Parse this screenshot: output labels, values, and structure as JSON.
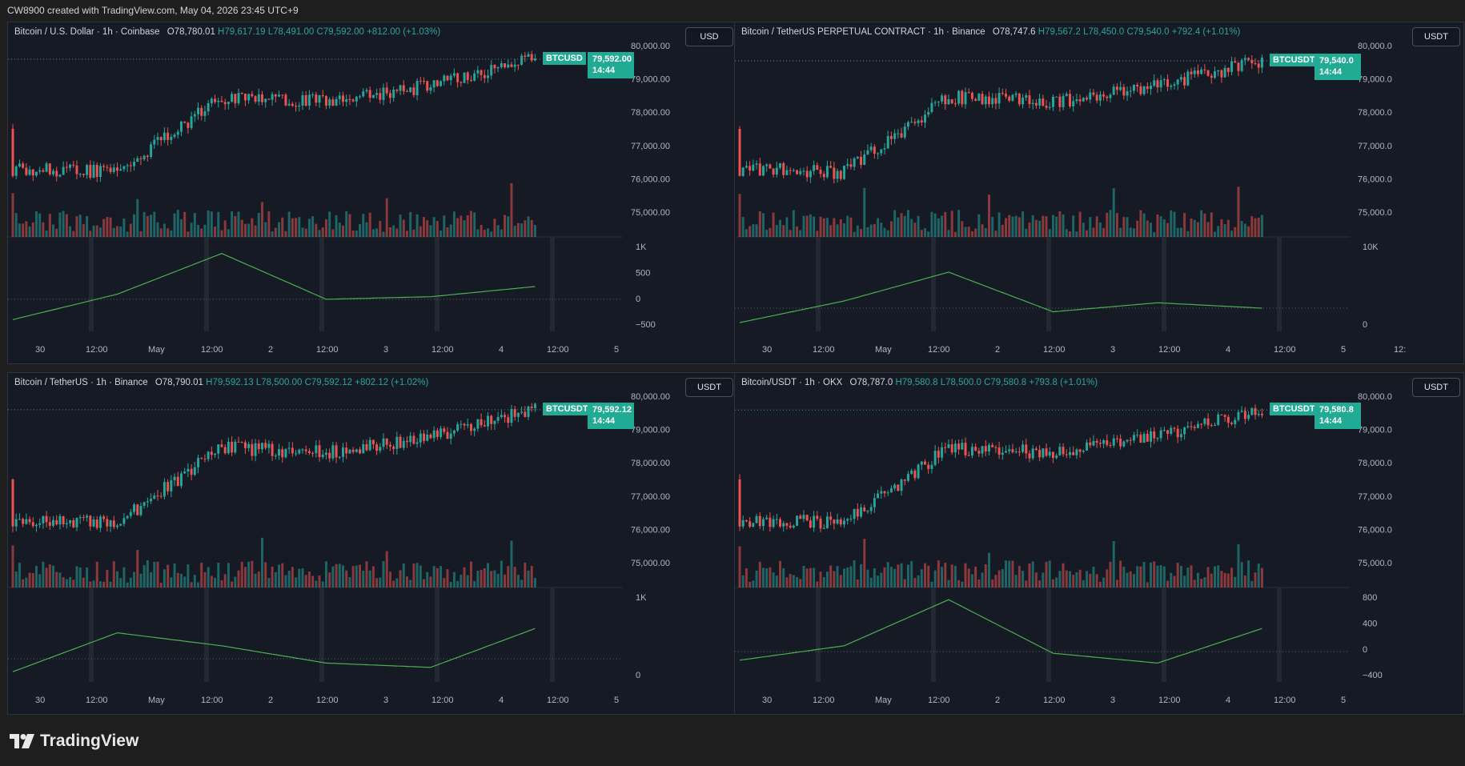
{
  "caption": "CW8900 created with TradingView.com, May 04, 2026 23:45 UTC+9",
  "brand": "TradingView",
  "colors": {
    "up": "#26a69a",
    "down": "#ef5350",
    "osc_up": "#4caf50",
    "osc_down": "#e91e63",
    "tag": "#22ab94"
  },
  "panels": [
    {
      "title": "Bitcoin / U.S. Dollar · 1h · Coinbase",
      "ohlc": {
        "O": "O78,780.01",
        "H": "H79,617.19",
        "L": "L78,491.00",
        "C": "C79,592.00",
        "chg": "+812.00 (+1.03%)"
      },
      "currency": "USD",
      "tag_symbol": "BTCUSD",
      "tag_price": "79,592.00",
      "tag_time": "14:44",
      "price_ticks": [
        "80,000.00",
        "79,000.00",
        "78,000.00",
        "77,000.00",
        "76,000.00",
        "75,000.00"
      ],
      "osc_ticks": [
        "1K",
        "500",
        "0",
        "−500"
      ],
      "time_labels": [
        "30",
        "12:00",
        "May",
        "12:00",
        "2",
        "12:00",
        "3",
        "12:00",
        "4",
        "12:00",
        "5"
      ]
    },
    {
      "title": "Bitcoin / TetherUS PERPETUAL CONTRACT · 1h · Binance",
      "ohlc": {
        "O": "O78,747.6",
        "H": "H79,567.2",
        "L": "L78,450.0",
        "C": "C79,540.0",
        "chg": "+792.4 (+1.01%)"
      },
      "currency": "USDT",
      "tag_symbol": "BTCUSDT.P",
      "tag_price": "79,540.0",
      "tag_time": "14:44",
      "price_ticks": [
        "80,000.0",
        "79,000.0",
        "78,000.0",
        "77,000.0",
        "76,000.0",
        "75,000.0"
      ],
      "osc_ticks": [
        "10K",
        "0"
      ],
      "time_labels": [
        "30",
        "12:00",
        "May",
        "12:00",
        "2",
        "12:00",
        "3",
        "12:00",
        "4",
        "12:00",
        "5",
        "12:"
      ]
    },
    {
      "title": "Bitcoin / TetherUS · 1h · Binance",
      "ohlc": {
        "O": "O78,790.01",
        "H": "H79,592.13",
        "L": "L78,500.00",
        "C": "C79,592.12",
        "chg": "+802.12 (+1.02%)"
      },
      "currency": "USDT",
      "tag_symbol": "BTCUSDT",
      "tag_price": "79,592.12",
      "tag_time": "14:44",
      "price_ticks": [
        "80,000.00",
        "79,000.00",
        "78,000.00",
        "77,000.00",
        "76,000.00",
        "75,000.00"
      ],
      "osc_ticks": [
        "1K",
        "0"
      ],
      "time_labels": [
        "30",
        "12:00",
        "May",
        "12:00",
        "2",
        "12:00",
        "3",
        "12:00",
        "4",
        "12:00",
        "5"
      ]
    },
    {
      "title": "Bitcoin/USDT · 1h · OKX",
      "ohlc": {
        "O": "O78,787.0",
        "H": "H79,580.8",
        "L": "L78,500.0",
        "C": "C79,580.8",
        "chg": "+793.8 (+1.01%)"
      },
      "currency": "USDT",
      "tag_symbol": "BTCUSDT",
      "tag_price": "79,580.8",
      "tag_time": "14:44",
      "price_ticks": [
        "80,000.0",
        "79,000.0",
        "78,000.0",
        "77,000.0",
        "76,000.0",
        "75,000.0"
      ],
      "osc_ticks": [
        "800",
        "400",
        "0",
        "−400"
      ],
      "time_labels": [
        "30",
        "12:00",
        "May",
        "12:00",
        "2",
        "12:00",
        "3",
        "12:00",
        "4",
        "12:00",
        "5"
      ]
    }
  ],
  "chart_data": [
    {
      "type": "candlestick",
      "x": [
        "Apr 30",
        "May 1",
        "May 2",
        "May 3",
        "May 4",
        "May 5"
      ],
      "close": [
        76300,
        76200,
        78450,
        78300,
        78800,
        79592
      ],
      "ylim": [
        74500,
        80500
      ],
      "oscillator": [
        -400,
        100,
        900,
        0,
        50,
        250
      ],
      "osc_ylim": [
        -600,
        1100
      ]
    },
    {
      "type": "candlestick",
      "x": [
        "Apr 30",
        "May 1",
        "May 2",
        "May 3",
        "May 4",
        "May 5"
      ],
      "close": [
        76300,
        76200,
        78450,
        78300,
        78800,
        79540
      ],
      "ylim": [
        74500,
        80500
      ],
      "oscillator": [
        -4000,
        2000,
        10000,
        -1000,
        1500,
        0
      ],
      "osc_ylim": [
        -6000,
        18000
      ]
    },
    {
      "type": "candlestick",
      "x": [
        "Apr 30",
        "May 1",
        "May 2",
        "May 3",
        "May 4",
        "May 5"
      ],
      "close": [
        76300,
        76200,
        78450,
        78300,
        78800,
        79592
      ],
      "ylim": [
        74500,
        80500
      ],
      "oscillator": [
        -300,
        600,
        300,
        -100,
        -200,
        700
      ],
      "osc_ylim": [
        -500,
        1500
      ]
    },
    {
      "type": "candlestick",
      "x": [
        "Apr 30",
        "May 1",
        "May 2",
        "May 3",
        "May 4",
        "May 5"
      ],
      "close": [
        76300,
        76200,
        78450,
        78300,
        78800,
        79581
      ],
      "ylim": [
        74500,
        80500
      ],
      "oscillator": [
        -150,
        100,
        900,
        -30,
        -200,
        400
      ],
      "osc_ylim": [
        -500,
        1000
      ]
    }
  ]
}
